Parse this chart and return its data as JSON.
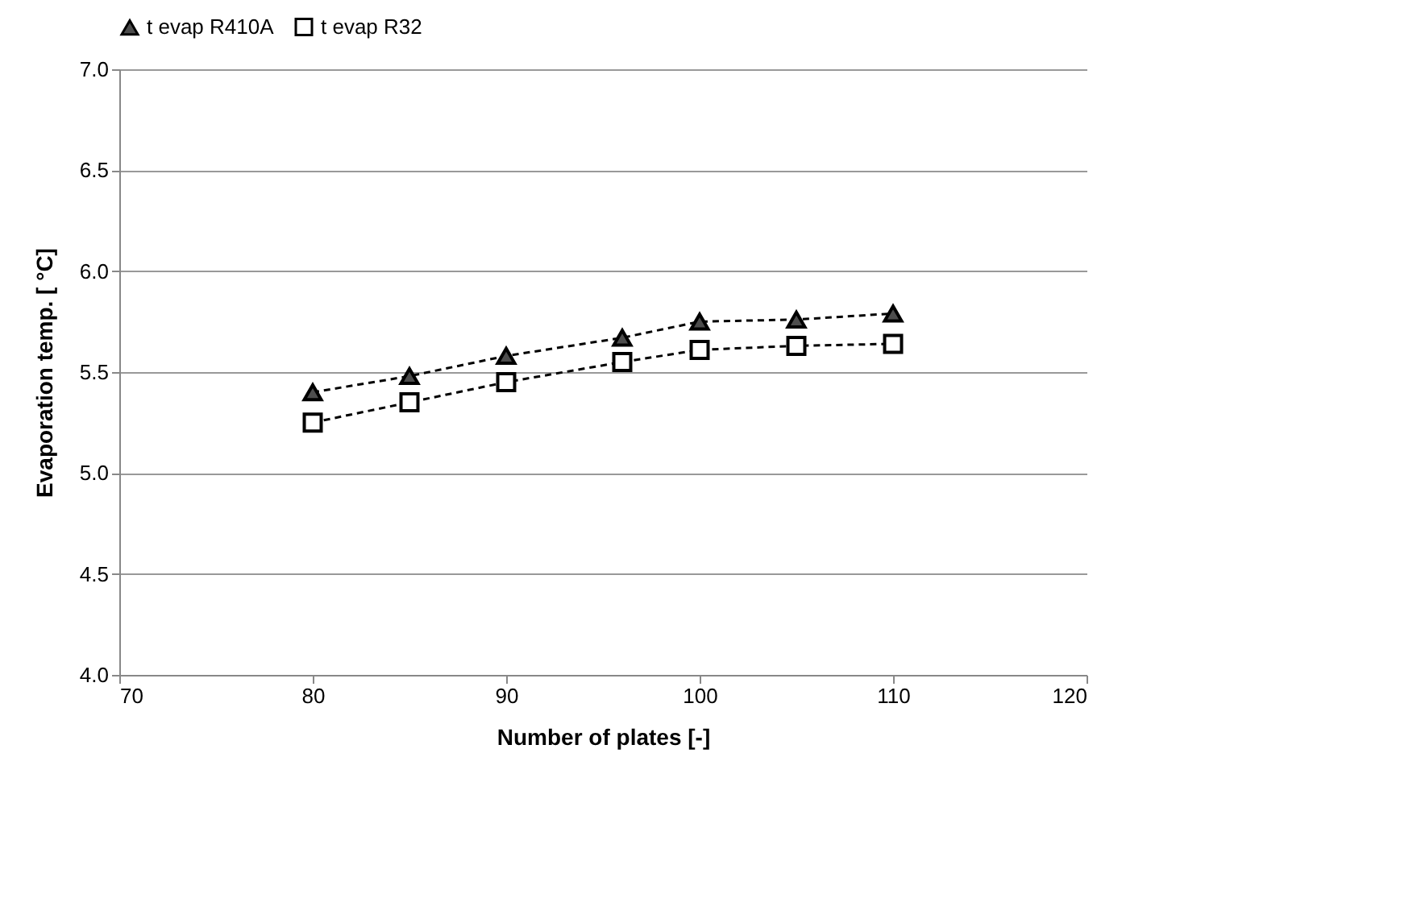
{
  "chart_data": {
    "type": "line",
    "xlabel": "Number of plates [-]",
    "ylabel": "Evaporation temp. [ °C]",
    "x": [
      80,
      85,
      90,
      96,
      100,
      105,
      110
    ],
    "series": [
      {
        "name": "t evap R410A",
        "color": "#4d4d4d",
        "marker": "triangle",
        "values": [
          5.4,
          5.48,
          5.58,
          5.67,
          5.75,
          5.76,
          5.79
        ]
      },
      {
        "name": "t evap R32",
        "color": "#000000",
        "marker": "square",
        "values": [
          5.25,
          5.35,
          5.45,
          5.55,
          5.61,
          5.63,
          5.64
        ]
      }
    ],
    "xlim": [
      70,
      120
    ],
    "xticks": [
      70,
      80,
      90,
      100,
      110,
      120
    ],
    "ylim": [
      4,
      7
    ],
    "yticks": [
      {
        "value": 4,
        "label": "4.0"
      },
      {
        "value": 4.5,
        "label": "4.5"
      },
      {
        "value": 5,
        "label": "5.0"
      },
      {
        "value": 5.5,
        "label": "5.5"
      },
      {
        "value": 6,
        "label": "6.0"
      },
      {
        "value": 6.5,
        "label": "6.5"
      },
      {
        "value": 7,
        "label": "7.0"
      }
    ],
    "grid": "y",
    "legend": "top",
    "line_style": "dashed"
  }
}
